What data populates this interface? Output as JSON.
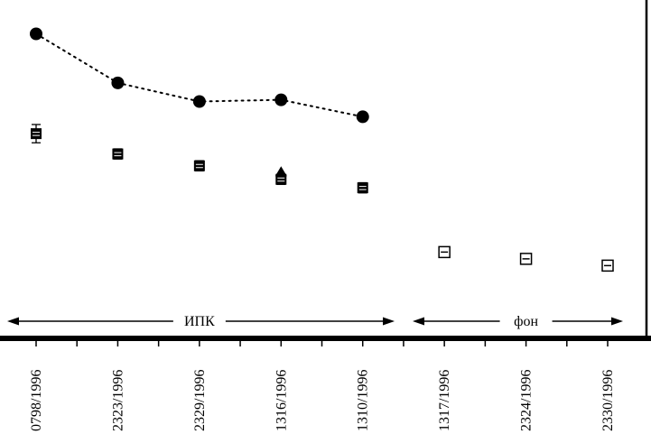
{
  "chart_data": {
    "type": "scatter",
    "title": "",
    "xlabel": "",
    "ylabel": "",
    "y_axis": "unlabeled",
    "ylim": [
      0,
      100
    ],
    "grid": false,
    "background": "#ffffff",
    "axis_color": "#000000",
    "categories": [
      "0798/1996",
      "2323/1996",
      "2329/1996",
      "1316/1996",
      "1310/1996",
      "1317/1996",
      "2324/1996",
      "2330/1996"
    ],
    "series": [
      {
        "name": "dotted-circle-series",
        "marker": "circle",
        "linestyle": "dotted",
        "color": "#000000",
        "points": [
          {
            "category_index": 0,
            "value": 90.0
          },
          {
            "category_index": 1,
            "value": 75.5
          },
          {
            "category_index": 2,
            "value": 70.0
          },
          {
            "category_index": 3,
            "value": 70.5
          },
          {
            "category_index": 4,
            "value": 65.5
          }
        ]
      },
      {
        "name": "triangle-series",
        "marker": "triangle",
        "linestyle": "none",
        "color": "#000000",
        "points": [
          {
            "category_index": 3,
            "value": 49.0
          }
        ]
      },
      {
        "name": "square-series-with-error-bars",
        "marker": "square",
        "linestyle": "none",
        "color": "#000000",
        "points": [
          {
            "category_index": 0,
            "value": 60.5,
            "error": 2.7,
            "filled": true
          },
          {
            "category_index": 1,
            "value": 54.5,
            "error": 1.5,
            "filled": true
          },
          {
            "category_index": 2,
            "value": 51.0,
            "error": 1.5,
            "filled": true
          },
          {
            "category_index": 3,
            "value": 47.0,
            "error": 1.5,
            "filled": true
          },
          {
            "category_index": 4,
            "value": 44.5,
            "error": 1.5,
            "filled": true
          },
          {
            "category_index": 5,
            "value": 25.5,
            "error": 1.2,
            "filled": false
          },
          {
            "category_index": 6,
            "value": 23.5,
            "error": 1.2,
            "filled": false
          },
          {
            "category_index": 7,
            "value": 21.5,
            "error": 1.2,
            "filled": false
          }
        ]
      }
    ],
    "annotations": [
      {
        "label": "ИПК",
        "from_index": 0,
        "to_index": 4,
        "style": "double-arrow"
      },
      {
        "label": "фон",
        "from_index": 5,
        "to_index": 7,
        "style": "double-arrow"
      }
    ]
  }
}
